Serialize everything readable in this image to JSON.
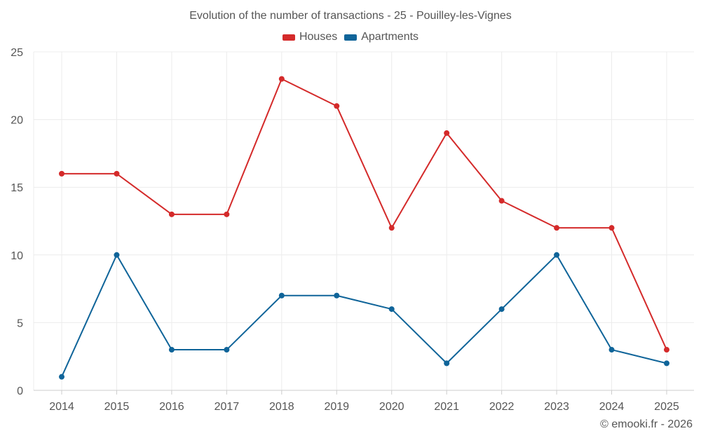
{
  "chart_data": {
    "type": "line",
    "title": "Evolution of the number of transactions - 25 - Pouilley-les-Vignes",
    "xlabel": "",
    "ylabel": "",
    "categories": [
      "2014",
      "2015",
      "2016",
      "2017",
      "2018",
      "2019",
      "2020",
      "2021",
      "2022",
      "2023",
      "2024",
      "2025"
    ],
    "ylim": [
      0,
      25
    ],
    "yticks": [
      0,
      5,
      10,
      15,
      20,
      25
    ],
    "yticks_labels": [
      "0",
      "5",
      "10",
      "15",
      "20",
      "25"
    ],
    "grid": true,
    "legend_position": "top-center",
    "series": [
      {
        "name": "Houses",
        "color": "#d42a2a",
        "values": [
          16,
          16,
          13,
          13,
          23,
          21,
          12,
          19,
          14,
          12,
          12,
          3
        ]
      },
      {
        "name": "Apartments",
        "color": "#0f6499",
        "values": [
          1,
          10,
          3,
          3,
          7,
          7,
          6,
          2,
          6,
          10,
          3,
          2
        ]
      }
    ]
  },
  "credit": "© emooki.fr - 2026"
}
